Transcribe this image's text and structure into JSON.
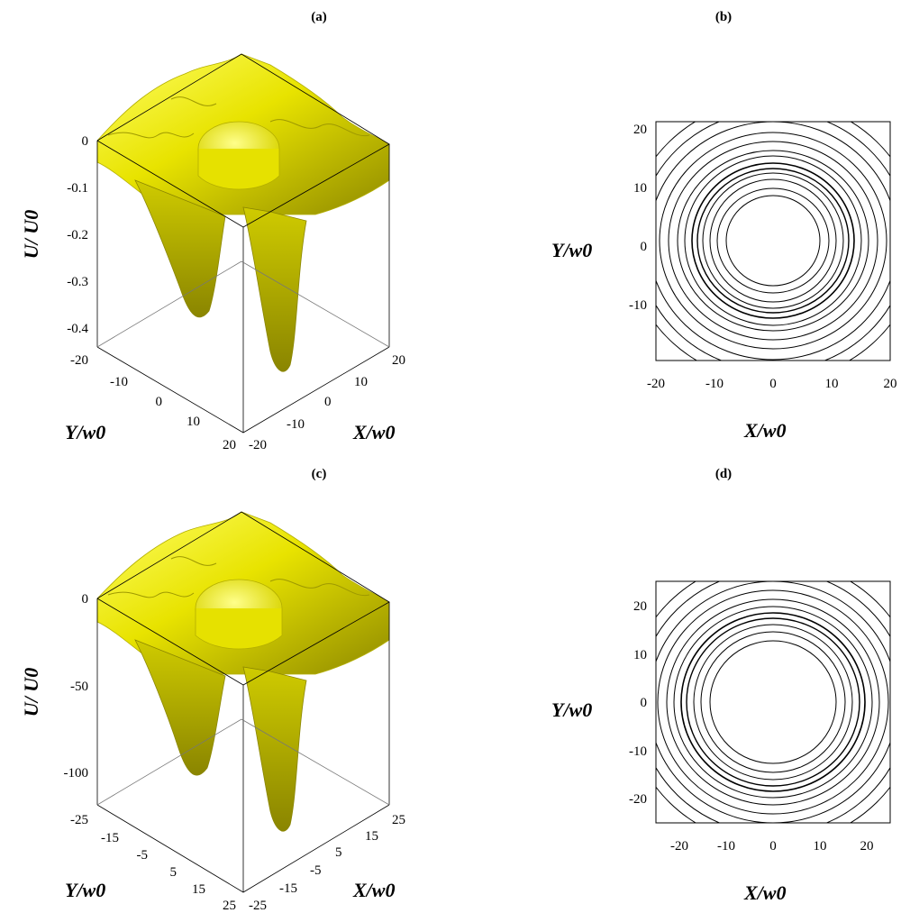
{
  "panels": {
    "a": {
      "label": "(a)"
    },
    "b": {
      "label": "(b)"
    },
    "c": {
      "label": "(c)"
    },
    "d": {
      "label": "(d)"
    }
  },
  "chart_data": [
    {
      "id": "a",
      "type": "surface",
      "zlabel": "U/ U0",
      "xlabel": "X/w0",
      "ylabel": "Y/w0",
      "z_ticks": [
        "0",
        "-0.1",
        "-0.2",
        "-0.3",
        "-0.4"
      ],
      "x_ticks": [
        "-20",
        "-10",
        "0",
        "10",
        "20"
      ],
      "y_ticks": [
        "-20",
        "-10",
        "0",
        "10",
        "20"
      ],
      "xlim": [
        -20,
        20
      ],
      "ylim": [
        -20,
        20
      ],
      "zlim": [
        -0.45,
        0
      ],
      "surface_color": "#f5f400"
    },
    {
      "id": "b",
      "type": "contour",
      "xlabel": "X/w0",
      "ylabel": "Y/w0",
      "x_ticks": [
        "-20",
        "-10",
        "0",
        "10",
        "20"
      ],
      "y_ticks": [
        "20",
        "10",
        "0",
        "-10"
      ],
      "xlim": [
        -20,
        20
      ],
      "ylim": [
        -20,
        20
      ]
    },
    {
      "id": "c",
      "type": "surface",
      "zlabel": "U/ U0",
      "xlabel": "X/w0",
      "ylabel": "Y/w0",
      "z_ticks": [
        "0",
        "-50",
        "-100"
      ],
      "x_ticks": [
        "-25",
        "-15",
        "-5",
        "5",
        "15",
        "25"
      ],
      "y_ticks": [
        "-25",
        "-15",
        "-5",
        "5",
        "15",
        "25"
      ],
      "xlim": [
        -25,
        25
      ],
      "ylim": [
        -25,
        25
      ],
      "zlim": [
        -120,
        0
      ],
      "surface_color": "#f5f400"
    },
    {
      "id": "d",
      "type": "contour",
      "xlabel": "X/w0",
      "ylabel": "Y/w0",
      "x_ticks": [
        "-20",
        "-10",
        "0",
        "10",
        "20"
      ],
      "y_ticks": [
        "20",
        "10",
        "0",
        "-10",
        "-20"
      ],
      "xlim": [
        -25,
        25
      ],
      "ylim": [
        -25,
        25
      ]
    }
  ]
}
